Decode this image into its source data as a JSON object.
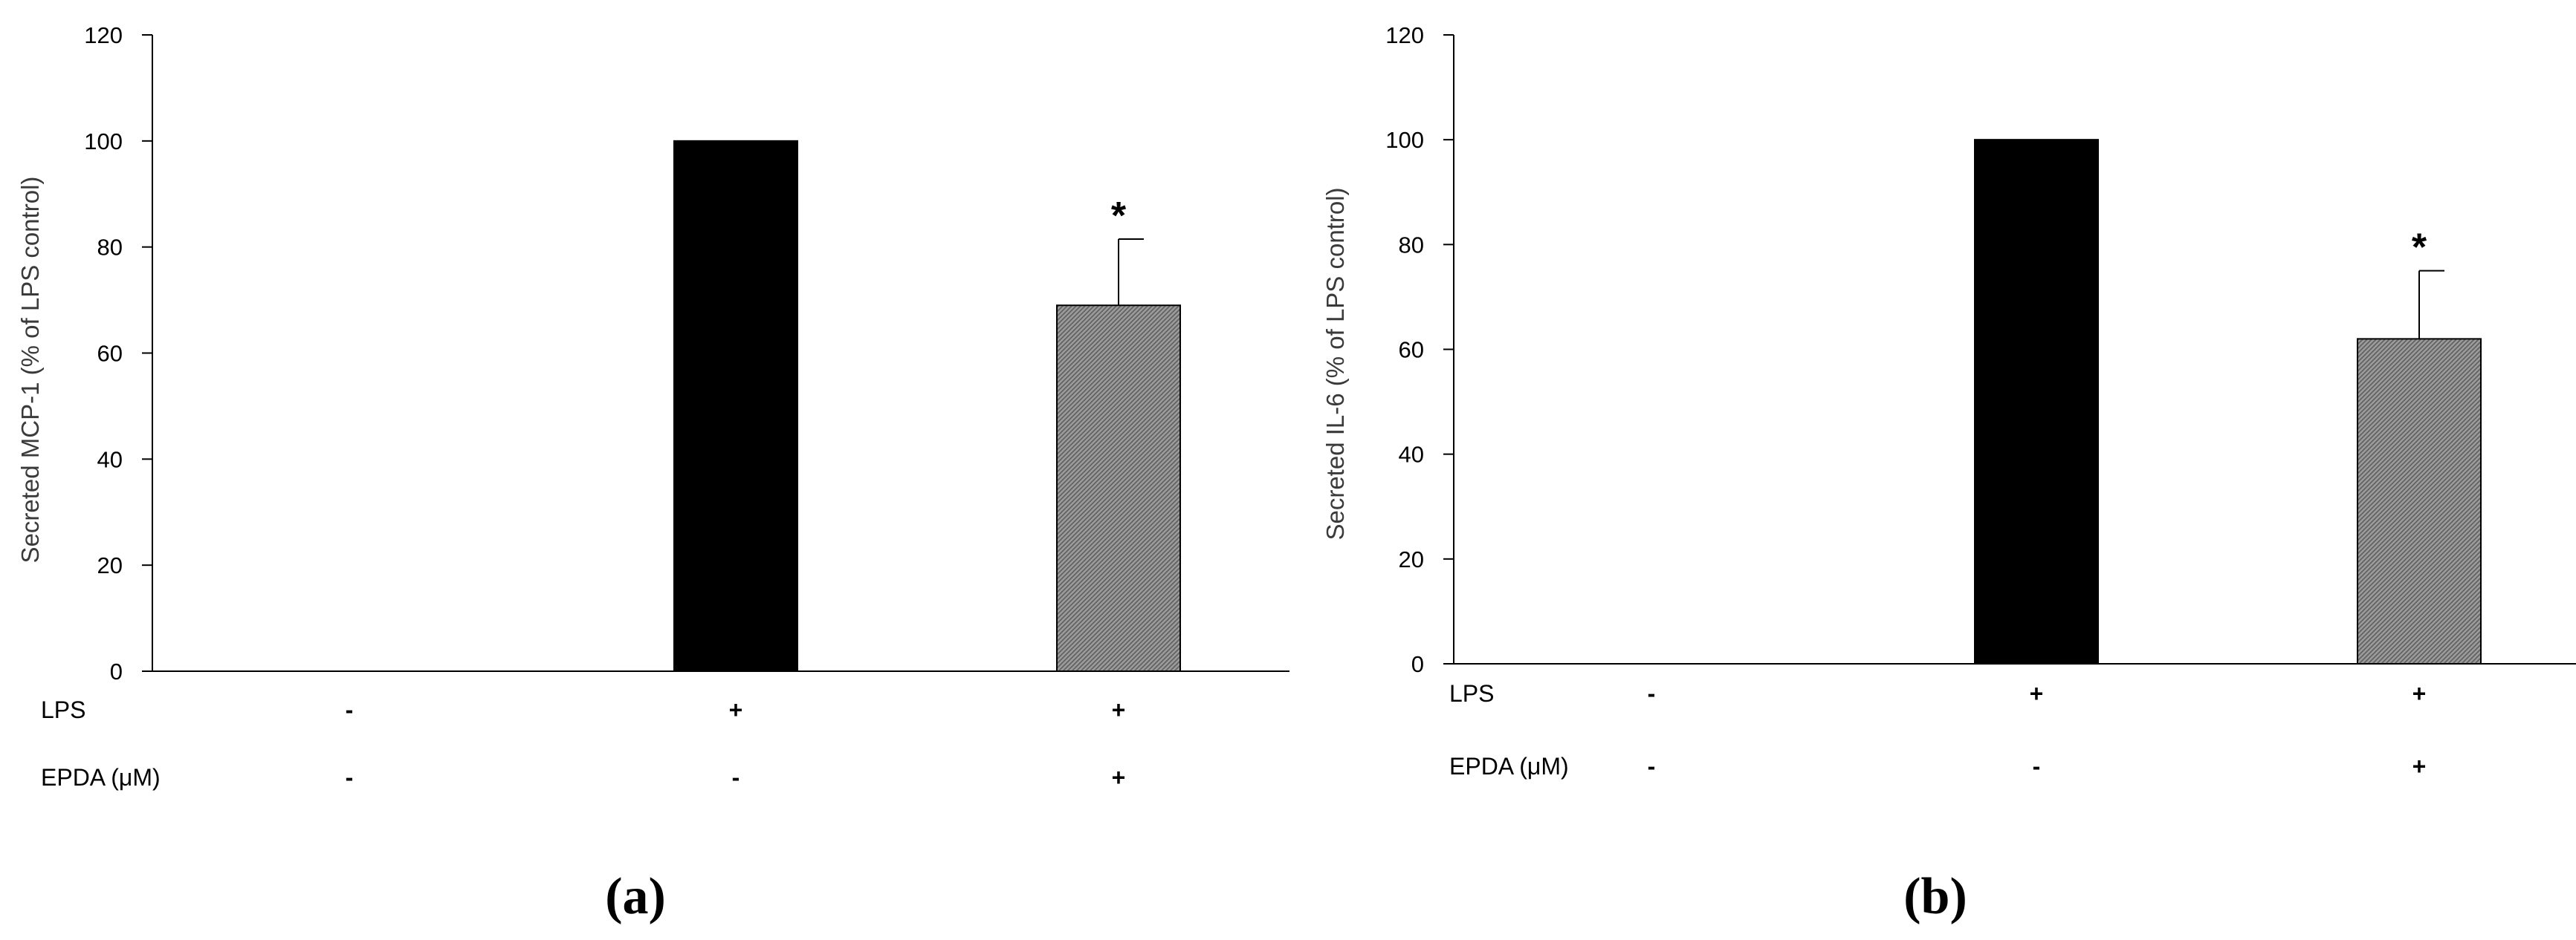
{
  "chart_data": [
    {
      "type": "bar",
      "panel_label": "(a)",
      "ylabel": "Secreted  MCP-1 (% of LPS control)",
      "ylim": [
        0,
        120
      ],
      "yticks": [
        0,
        20,
        40,
        60,
        80,
        100,
        120
      ],
      "values": [
        0,
        100,
        69
      ],
      "error_plus": [
        0,
        0,
        12.5
      ],
      "colors": [
        "#000000",
        "#000000",
        "#8c8c8c"
      ],
      "significance": [
        "",
        "",
        "*"
      ],
      "row_labels": [
        "LPS",
        "EPDA (μM)"
      ],
      "rows": [
        [
          "-",
          "+",
          "+"
        ],
        [
          "-",
          "-",
          "+"
        ]
      ]
    },
    {
      "type": "bar",
      "panel_label": "(b)",
      "ylabel": "Secreted  IL-6 (% of LPS control)",
      "ylim": [
        0,
        120
      ],
      "yticks": [
        0,
        20,
        40,
        60,
        80,
        100,
        120
      ],
      "values": [
        0,
        100,
        62
      ],
      "error_plus": [
        0,
        0,
        13
      ],
      "colors": [
        "#000000",
        "#000000",
        "#8c8c8c"
      ],
      "significance": [
        "",
        "",
        "*"
      ],
      "row_labels": [
        "LPS",
        "EPDA (μM)"
      ],
      "rows": [
        [
          "-",
          "+",
          "+"
        ],
        [
          "-",
          "-",
          "+"
        ]
      ]
    }
  ]
}
